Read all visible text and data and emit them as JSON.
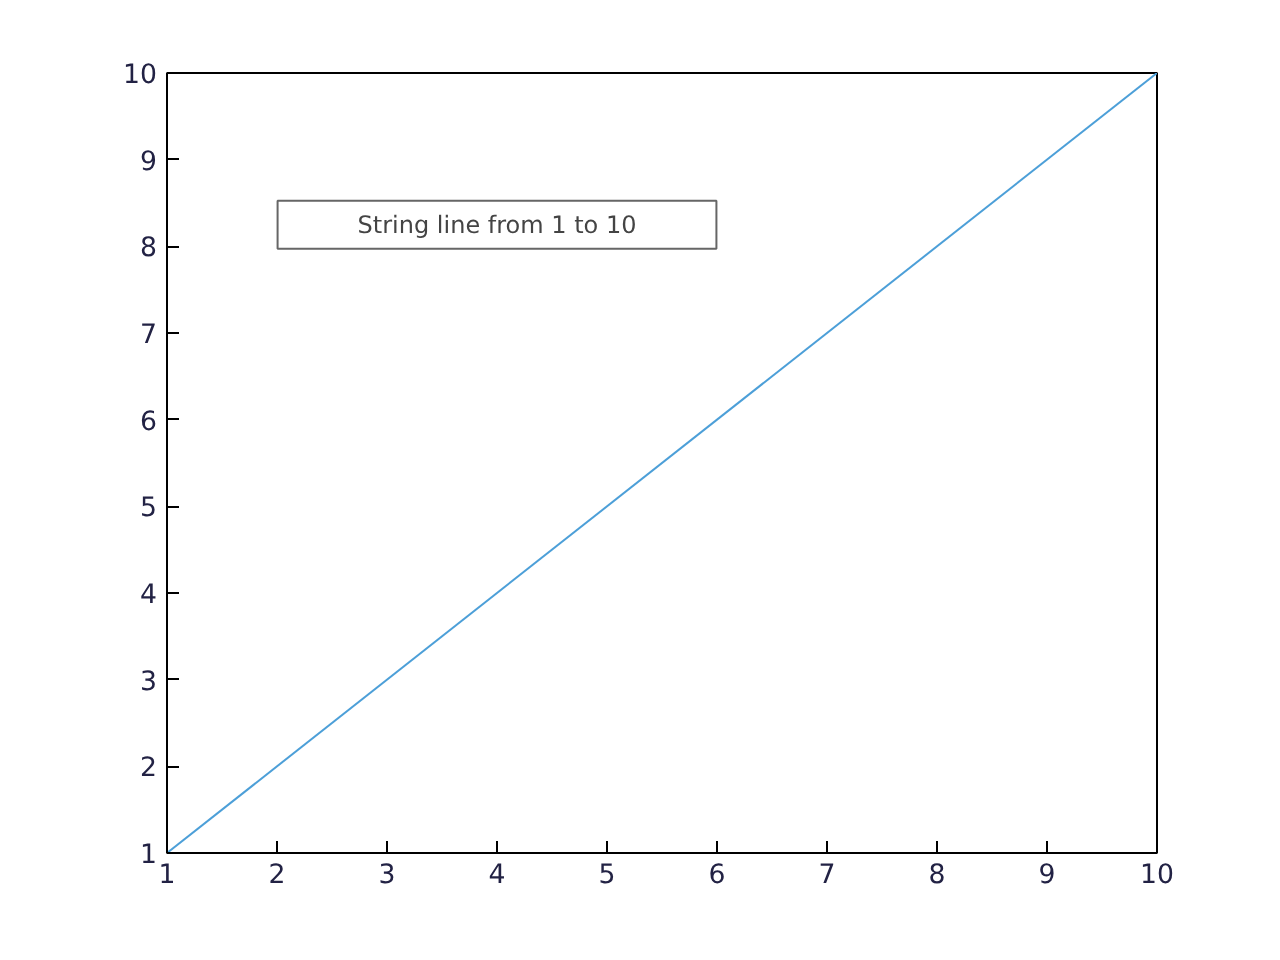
{
  "chart_data": {
    "type": "line",
    "x": [
      1,
      10
    ],
    "series": [
      {
        "color": "#4c9fd8",
        "values": [
          1,
          10
        ]
      }
    ],
    "xlim": [
      1,
      10
    ],
    "ylim": [
      1,
      10
    ],
    "xticks": [
      1,
      2,
      3,
      4,
      5,
      6,
      7,
      8,
      9,
      10
    ],
    "yticks": [
      1,
      2,
      3,
      4,
      5,
      6,
      7,
      8,
      9,
      10
    ],
    "annotations": [
      "String line from 1 to 10"
    ],
    "grid": false
  }
}
